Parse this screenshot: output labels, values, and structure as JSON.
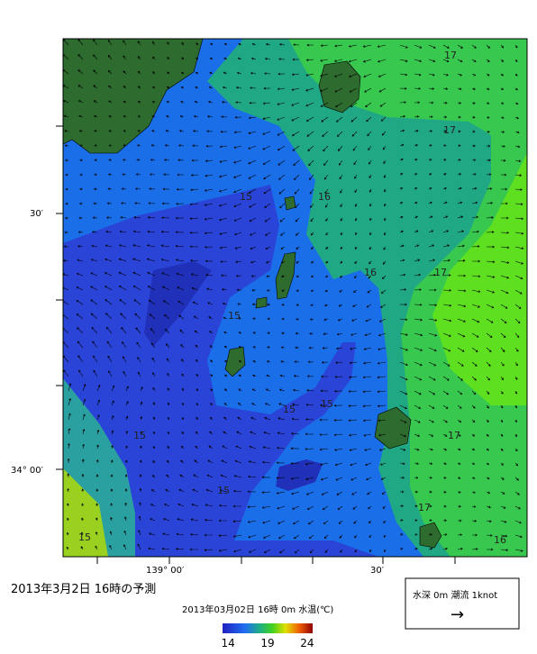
{
  "map": {
    "title": "2013年3月2日 16時の予測",
    "subtitle": "2013年03月02日 16時 0m 水温(℃)",
    "axis_labels": {
      "left": [
        "30′",
        "34° 00′"
      ],
      "bottom": [
        "139° 00′",
        "30′"
      ]
    },
    "contour_labels": [
      "17",
      "17",
      "16",
      "15",
      "16",
      "17",
      "15",
      "15",
      "15",
      "17",
      "15",
      "15",
      "17",
      "16",
      "15"
    ],
    "colorbar": {
      "clim": [
        13.3,
        24.7
      ],
      "ticks": [
        14,
        19,
        24
      ]
    },
    "legend": {
      "text": "水深 0m 潮流 1knot",
      "arrow": "→"
    }
  }
}
